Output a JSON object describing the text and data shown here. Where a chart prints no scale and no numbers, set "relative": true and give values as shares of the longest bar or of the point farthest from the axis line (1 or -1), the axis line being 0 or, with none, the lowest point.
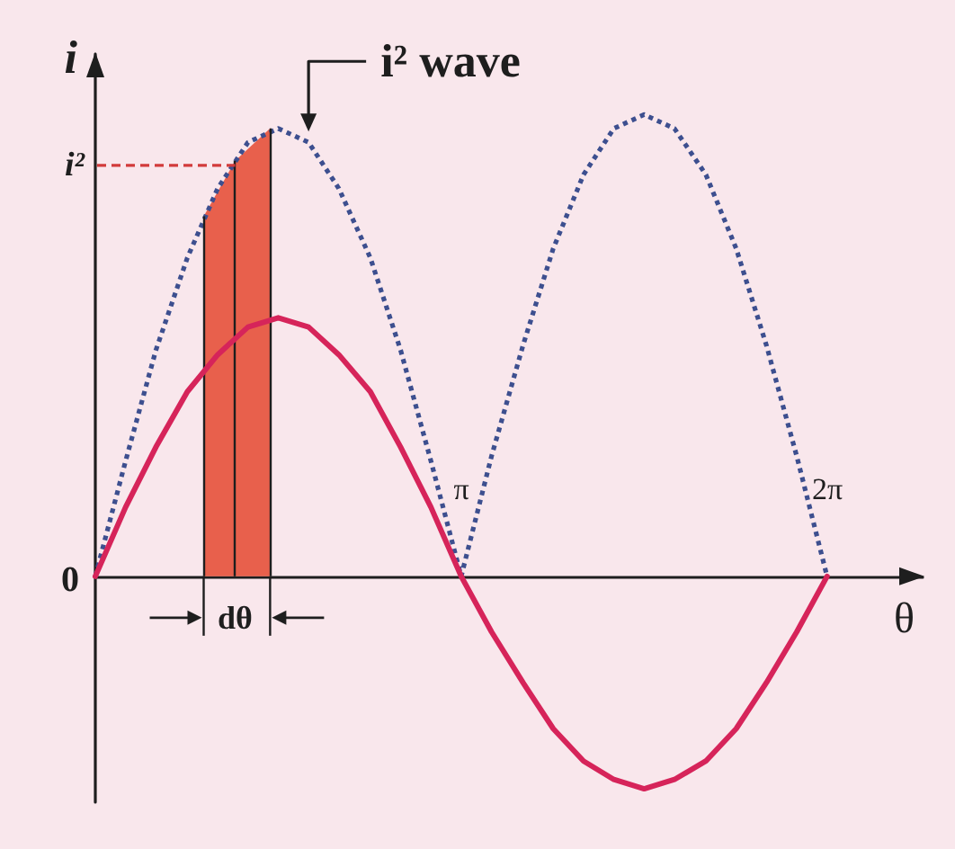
{
  "chart_data": {
    "type": "line",
    "relative": true,
    "xlabel": "θ",
    "ylabel": "i",
    "xlim": [
      0,
      7.1
    ],
    "xticks": [
      {
        "value": 3.1416,
        "label": "π"
      },
      {
        "value": 6.2832,
        "label": "2π"
      }
    ],
    "tick_labels": "x",
    "marker": "none",
    "x": [
      0,
      0.26,
      0.52,
      0.79,
      1.05,
      1.31,
      1.57,
      1.83,
      2.09,
      2.36,
      2.62,
      2.88,
      3.14,
      3.4,
      3.67,
      3.93,
      4.19,
      4.45,
      4.71,
      4.97,
      5.24,
      5.5,
      5.76,
      6.02,
      6.28
    ],
    "series": [
      {
        "type": "area",
        "color": "#e8604c",
        "x": [
          0.93,
          1.2,
          1.5
        ],
        "values": [
          0.78,
          0.9,
          0.97
        ]
      },
      {
        "color": "#3d4f8f",
        "line_style": "dotted",
        "values": [
          0,
          0.25,
          0.49,
          0.69,
          0.84,
          0.94,
          0.97,
          0.94,
          0.84,
          0.69,
          0.49,
          0.25,
          0,
          0.26,
          0.5,
          0.71,
          0.87,
          0.97,
          1,
          0.97,
          0.87,
          0.71,
          0.5,
          0.26,
          0
        ]
      },
      {
        "color": "#d6245a",
        "line_style": "solid",
        "values": [
          0,
          0.15,
          0.28,
          0.4,
          0.48,
          0.54,
          0.56,
          0.54,
          0.48,
          0.4,
          0.28,
          0.15,
          0,
          -0.12,
          -0.23,
          -0.33,
          -0.4,
          -0.44,
          -0.46,
          -0.44,
          -0.4,
          -0.33,
          -0.23,
          -0.12,
          0
        ]
      }
    ],
    "annotations": [
      {
        "text": "0",
        "x": 0,
        "y": 0
      },
      {
        "text": "i²",
        "x": 1.2,
        "y": 0.89
      },
      {
        "text": "i² wave",
        "x": 1.83,
        "y": 0.94
      },
      {
        "text": "dθ",
        "x": 1.2,
        "y": 0
      }
    ]
  }
}
